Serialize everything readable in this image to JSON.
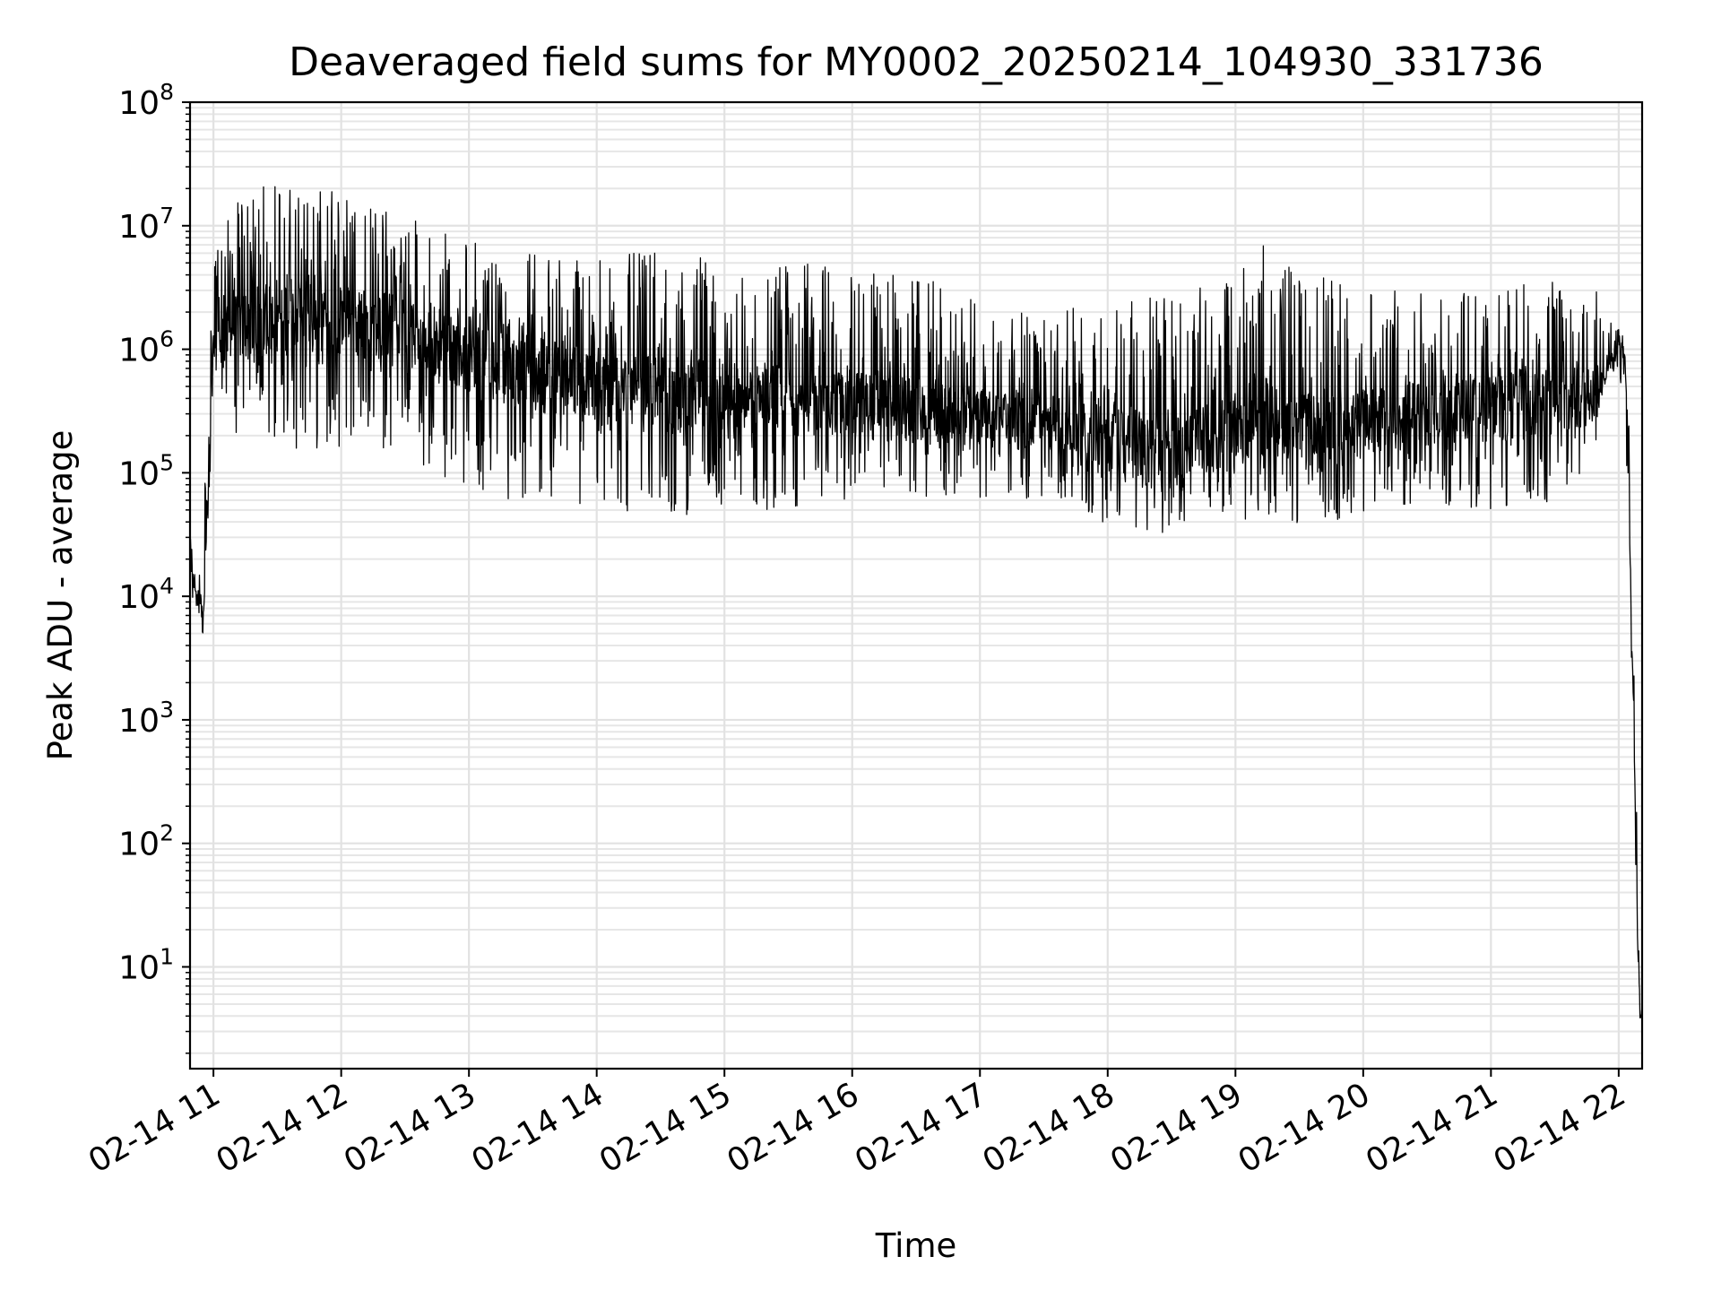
{
  "chart_data": {
    "type": "line",
    "title": "Deaveraged field sums for MY0002_20250214_104930_331736",
    "xlabel": "Time",
    "ylabel": "Peak ADU - average",
    "yscale": "log",
    "ylim": [
      1.5,
      100000000
    ],
    "xlim": [
      "2025-02-14 10:49",
      "2025-02-14 22:11"
    ],
    "grid": true,
    "series_color": "#000000",
    "x_ticks": [
      {
        "label": "02-14 11",
        "value": "2025-02-14 11:00"
      },
      {
        "label": "02-14 12",
        "value": "2025-02-14 12:00"
      },
      {
        "label": "02-14 13",
        "value": "2025-02-14 13:00"
      },
      {
        "label": "02-14 14",
        "value": "2025-02-14 14:00"
      },
      {
        "label": "02-14 15",
        "value": "2025-02-14 15:00"
      },
      {
        "label": "02-14 16",
        "value": "2025-02-14 16:00"
      },
      {
        "label": "02-14 17",
        "value": "2025-02-14 17:00"
      },
      {
        "label": "02-14 18",
        "value": "2025-02-14 18:00"
      },
      {
        "label": "02-14 19",
        "value": "2025-02-14 19:00"
      },
      {
        "label": "02-14 20",
        "value": "2025-02-14 20:00"
      },
      {
        "label": "02-14 21",
        "value": "2025-02-14 21:00"
      },
      {
        "label": "02-14 22",
        "value": "2025-02-14 22:00"
      }
    ],
    "y_ticks": [
      {
        "base": "10",
        "exp": "1",
        "value": 10
      },
      {
        "base": "10",
        "exp": "2",
        "value": 100
      },
      {
        "base": "10",
        "exp": "3",
        "value": 1000
      },
      {
        "base": "10",
        "exp": "4",
        "value": 10000
      },
      {
        "base": "10",
        "exp": "5",
        "value": 100000
      },
      {
        "base": "10",
        "exp": "6",
        "value": 1000000
      },
      {
        "base": "10",
        "exp": "7",
        "value": 10000000
      },
      {
        "base": "10",
        "exp": "8",
        "value": 100000000
      }
    ],
    "series": [
      {
        "x": [
          "2025-02-14 10:49",
          "2025-02-14 10:52",
          "2025-02-14 10:54",
          "2025-02-14 10:55",
          "2025-02-14 10:58",
          "2025-02-14 11:00",
          "2025-02-14 11:05",
          "2025-02-14 11:10",
          "2025-02-14 11:20",
          "2025-02-14 11:30",
          "2025-02-14 11:40",
          "2025-02-14 12:00",
          "2025-02-14 12:10",
          "2025-02-14 12:20",
          "2025-02-14 12:30",
          "2025-02-14 12:40",
          "2025-02-14 12:50",
          "2025-02-14 13:00",
          "2025-02-14 13:20",
          "2025-02-14 13:40",
          "2025-02-14 14:00",
          "2025-02-14 14:20",
          "2025-02-14 14:40",
          "2025-02-14 15:00",
          "2025-02-14 15:20",
          "2025-02-14 15:40",
          "2025-02-14 16:00",
          "2025-02-14 16:20",
          "2025-02-14 16:40",
          "2025-02-14 17:00",
          "2025-02-14 17:20",
          "2025-02-14 17:40",
          "2025-02-14 18:00",
          "2025-02-14 18:20",
          "2025-02-14 18:40",
          "2025-02-14 19:00",
          "2025-02-14 19:10",
          "2025-02-14 19:20",
          "2025-02-14 19:40",
          "2025-02-14 20:00",
          "2025-02-14 20:20",
          "2025-02-14 20:40",
          "2025-02-14 21:00",
          "2025-02-14 21:20",
          "2025-02-14 21:40",
          "2025-02-14 21:50",
          "2025-02-14 21:55",
          "2025-02-14 22:00",
          "2025-02-14 22:03",
          "2025-02-14 22:05",
          "2025-02-14 22:06",
          "2025-02-14 22:07",
          "2025-02-14 22:08",
          "2025-02-14 22:10",
          "2025-02-14 22:11"
        ],
        "center": [
          15000,
          11000,
          8000,
          6000,
          100000,
          1000000,
          1200000,
          1500000,
          1600000,
          1800000,
          2000000,
          1800000,
          1600000,
          1500000,
          1300000,
          1200000,
          1100000,
          900000,
          700000,
          600000,
          500000,
          450000,
          420000,
          400000,
          380000,
          360000,
          350000,
          330000,
          310000,
          280000,
          260000,
          250000,
          200000,
          150000,
          180000,
          220000,
          300000,
          250000,
          200000,
          250000,
          300000,
          320000,
          330000,
          350000,
          380000,
          450000,
          800000,
          1200000,
          800000,
          50000,
          5000,
          1500,
          100,
          4,
          4
        ],
        "low": [
          10000,
          8000,
          6000,
          5000,
          40000,
          400000,
          300000,
          200000,
          180000,
          160000,
          150000,
          160000,
          150000,
          140000,
          120000,
          100000,
          90000,
          70000,
          60000,
          50000,
          50000,
          45000,
          45000,
          50000,
          50000,
          55000,
          55000,
          55000,
          60000,
          60000,
          60000,
          60000,
          35000,
          30000,
          40000,
          40000,
          40000,
          40000,
          35000,
          45000,
          50000,
          50000,
          50000,
          55000,
          60000,
          150000,
          500000,
          700000,
          300000,
          20000,
          3000,
          1000,
          50,
          3.5,
          3.5
        ],
        "high": [
          30000,
          20000,
          15000,
          40000,
          800000,
          6000000,
          10000000,
          15000000,
          20000000,
          25000000,
          22000000,
          20000000,
          15000000,
          15000000,
          14000000,
          10000000,
          9000000,
          8000000,
          7000000,
          6000000,
          6000000,
          6000000,
          6000000,
          5000000,
          5000000,
          5000000,
          5000000,
          4000000,
          3500000,
          2500000,
          2000000,
          2000000,
          3000000,
          3000000,
          3000000,
          4000000,
          8000000,
          5000000,
          4000000,
          3000000,
          3000000,
          3000000,
          3000000,
          4000000,
          4000000,
          4000000,
          2000000,
          1600000,
          1200000,
          200000,
          20000,
          5000,
          500,
          5,
          5
        ]
      }
    ]
  }
}
